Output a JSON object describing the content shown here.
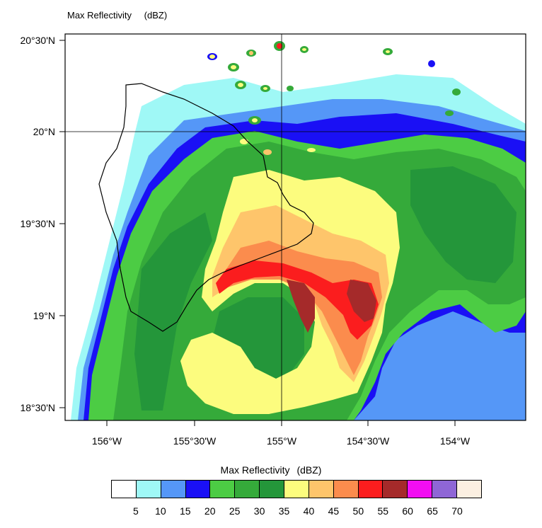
{
  "title": {
    "name": "Max Reflectivity",
    "units": "(dBZ)"
  },
  "lat_ticks": [
    "20°30'N",
    "20°N",
    "19°30'N",
    "19°N",
    "18°30'N"
  ],
  "lon_ticks": [
    "156°W",
    "155°30'W",
    "155°W",
    "154°30'W",
    "154°W"
  ],
  "colorbar": {
    "title": "Max Reflectivity",
    "units": "(dBZ)",
    "labels": [
      "5",
      "10",
      "15",
      "20",
      "25",
      "30",
      "35",
      "40",
      "45",
      "50",
      "55",
      "60",
      "65",
      "70"
    ],
    "colors": [
      "#ffffff",
      "#9ff8f6",
      "#5597f7",
      "#1a10f5",
      "#4ccc44",
      "#35aa3a",
      "#24963a",
      "#fcfc7e",
      "#fec56b",
      "#fb8c4d",
      "#fb1d1e",
      "#a52a2a",
      "#f20ef2",
      "#8f66d6",
      "#fbefe1"
    ]
  },
  "map": {
    "region": "Hawaii (Big Island)",
    "field_colors": {
      "light_cyan": "#9ff8f6",
      "light_blue": "#5597f7",
      "blue": "#1a10f5",
      "green_light": "#4ccc44",
      "green_mid": "#35aa3a",
      "green_dark": "#24963a",
      "yellow": "#fcfc7e",
      "light_orange": "#fec56b",
      "orange": "#fb8c4d",
      "red": "#fb1d1e",
      "dark_red": "#a52a2a"
    }
  }
}
